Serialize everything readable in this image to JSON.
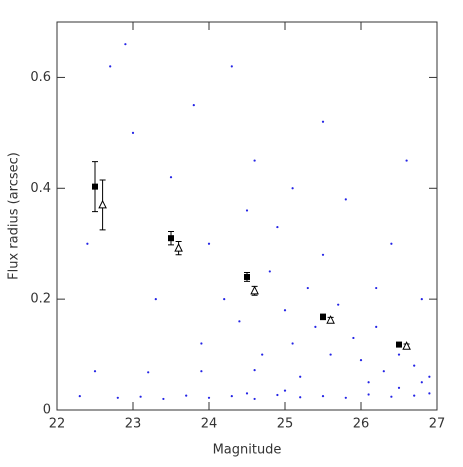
{
  "chart_data": {
    "type": "scatter",
    "xlabel": "Magnitude",
    "ylabel": "Flux radius (arcsec)",
    "xlim": [
      22,
      27
    ],
    "ylim": [
      0,
      0.7
    ],
    "xticks": [
      22,
      23,
      24,
      25,
      26,
      27
    ],
    "yticks": [
      0,
      0.2,
      0.4,
      0.6
    ],
    "series": [
      {
        "color": "#2323e6",
        "marker": "dot",
        "x": [
          22.3,
          22.8,
          23.1,
          23.4,
          23.7,
          24.0,
          24.3,
          24.6,
          24.9,
          25.2,
          25.5,
          25.8,
          26.1,
          26.4,
          26.7,
          26.9,
          25.0,
          26.5,
          26.8,
          24.5,
          22.5,
          23.2,
          23.9,
          24.6,
          24.2,
          24.4,
          24.8,
          25.0,
          25.1,
          25.3,
          25.4,
          25.6,
          25.7,
          25.9,
          26.0,
          26.2,
          26.3,
          26.5,
          26.7,
          26.9,
          25.5,
          24.9,
          24.0,
          23.5,
          23.0,
          22.7,
          23.8,
          24.6,
          25.8,
          26.4,
          26.8,
          22.4,
          23.3,
          23.9,
          24.7,
          25.2,
          26.1,
          22.9,
          24.3,
          25.5,
          26.6,
          26.2,
          25.1,
          24.5
        ],
        "y": [
          0.025,
          0.022,
          0.024,
          0.02,
          0.026,
          0.022,
          0.025,
          0.02,
          0.027,
          0.023,
          0.025,
          0.022,
          0.028,
          0.024,
          0.026,
          0.03,
          0.035,
          0.04,
          0.05,
          0.03,
          0.07,
          0.068,
          0.07,
          0.072,
          0.2,
          0.16,
          0.25,
          0.18,
          0.12,
          0.22,
          0.15,
          0.1,
          0.19,
          0.13,
          0.09,
          0.15,
          0.07,
          0.1,
          0.08,
          0.06,
          0.28,
          0.33,
          0.3,
          0.42,
          0.5,
          0.62,
          0.55,
          0.45,
          0.38,
          0.3,
          0.2,
          0.3,
          0.2,
          0.12,
          0.1,
          0.06,
          0.05,
          0.66,
          0.62,
          0.52,
          0.45,
          0.22,
          0.4,
          0.36
        ]
      },
      {
        "color": "#000000",
        "marker": "square",
        "x": [
          22.5,
          23.5,
          24.5,
          25.5,
          26.5
        ],
        "y": [
          0.403,
          0.31,
          0.24,
          0.168,
          0.118
        ],
        "err": [
          0.045,
          0.012,
          0.008,
          0.005,
          0.004
        ]
      },
      {
        "color": "#000000",
        "marker": "triangle",
        "x": [
          22.6,
          23.6,
          24.6,
          25.6,
          26.6
        ],
        "y": [
          0.37,
          0.292,
          0.215,
          0.162,
          0.115
        ],
        "err": [
          0.045,
          0.012,
          0.008,
          0.005,
          0.004
        ]
      }
    ]
  }
}
